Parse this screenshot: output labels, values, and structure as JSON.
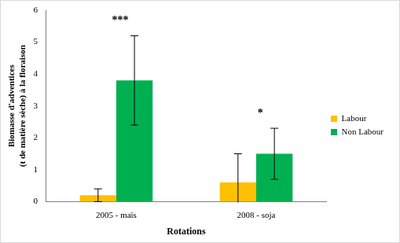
{
  "chart_data": {
    "type": "bar",
    "x_label": "Rotations",
    "y_label": [
      "Biomasse d'adventices",
      "(t de matière sèche) à la floraison"
    ],
    "categories": [
      "2005 - maïs",
      "2008 - soja"
    ],
    "series": [
      {
        "name": "Labour",
        "color": "#FFC000",
        "values": [
          0.2,
          0.6
        ],
        "errors": [
          0.2,
          0.9
        ]
      },
      {
        "name": "Non Labour",
        "color": "#00B050",
        "values": [
          3.8,
          1.5
        ],
        "errors": [
          1.4,
          0.8
        ],
        "annotations": [
          "***",
          "*"
        ]
      }
    ],
    "ylim": [
      0,
      6
    ],
    "yticks": [
      0,
      1,
      2,
      3,
      4,
      5,
      6
    ],
    "grid": false,
    "legend": "right"
  }
}
